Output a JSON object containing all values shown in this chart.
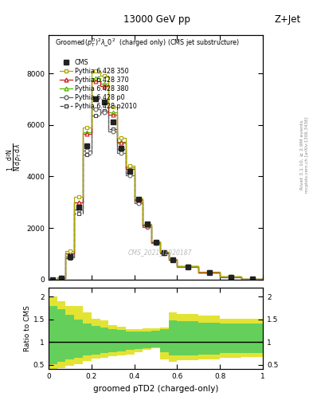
{
  "title_top": "13000 GeV pp",
  "title_right": "Z+Jet",
  "xlabel": "groomed pTD2 (charged-only)",
  "right_label1": "Rivet 3.1.10, ≥ 2.9M events",
  "right_label2": "mcplots.cern.ch [arXiv:1306.3436]",
  "watermark": "CMS_2021_I1920187",
  "bin_edges": [
    0.0,
    0.04,
    0.08,
    0.12,
    0.16,
    0.2,
    0.24,
    0.28,
    0.32,
    0.36,
    0.4,
    0.44,
    0.48,
    0.52,
    0.56,
    0.6,
    0.7,
    0.8,
    0.9,
    1.0
  ],
  "cms_values": [
    0.0,
    50,
    900,
    2800,
    5200,
    7000,
    6900,
    6100,
    5100,
    4200,
    3100,
    2150,
    1450,
    1050,
    760,
    480,
    260,
    90,
    25
  ],
  "py350_values": [
    0.0,
    80,
    1100,
    3200,
    5900,
    8100,
    7900,
    6700,
    5500,
    4400,
    3150,
    2150,
    1470,
    1070,
    780,
    530,
    290,
    105,
    32
  ],
  "py370_values": [
    0.0,
    70,
    1020,
    3000,
    5650,
    7700,
    7500,
    6400,
    5300,
    4300,
    3080,
    2100,
    1440,
    1040,
    760,
    510,
    280,
    100,
    30
  ],
  "py380_values": [
    0.0,
    70,
    1020,
    3000,
    5700,
    7800,
    7600,
    6500,
    5350,
    4350,
    3100,
    2120,
    1450,
    1050,
    770,
    515,
    282,
    101,
    30
  ],
  "pyp0_values": [
    0.0,
    55,
    880,
    2700,
    5000,
    6600,
    6500,
    5750,
    4900,
    4050,
    2950,
    2030,
    1400,
    1020,
    750,
    500,
    275,
    98,
    28
  ],
  "pyp2010_values": [
    0.0,
    50,
    820,
    2550,
    4850,
    6350,
    6550,
    5850,
    5050,
    4150,
    3000,
    2080,
    1430,
    1040,
    770,
    520,
    285,
    102,
    30
  ],
  "cms_color": "#222222",
  "py350_color": "#aaaa00",
  "py370_color": "#cc2222",
  "py380_color": "#55bb00",
  "pyp0_color": "#666666",
  "pyp2010_color": "#444444",
  "ratio_py350_hi": [
    2.0,
    1.9,
    1.8,
    1.8,
    1.65,
    1.52,
    1.48,
    1.38,
    1.33,
    1.28,
    1.28,
    1.3,
    1.3,
    1.32,
    1.65,
    1.62,
    1.58,
    1.52,
    1.52
  ],
  "ratio_py350_lo": [
    0.35,
    0.42,
    0.48,
    0.52,
    0.58,
    0.63,
    0.66,
    0.68,
    0.7,
    0.73,
    0.78,
    0.83,
    0.86,
    0.62,
    0.57,
    0.6,
    0.62,
    0.65,
    0.67
  ],
  "ratio_py380_hi": [
    1.8,
    1.72,
    1.6,
    1.5,
    1.4,
    1.35,
    1.32,
    1.28,
    1.26,
    1.24,
    1.23,
    1.24,
    1.25,
    1.28,
    1.48,
    1.46,
    1.42,
    1.4,
    1.4
  ],
  "ratio_py380_lo": [
    0.52,
    0.57,
    0.62,
    0.65,
    0.7,
    0.73,
    0.76,
    0.78,
    0.8,
    0.82,
    0.84,
    0.86,
    0.88,
    0.78,
    0.7,
    0.71,
    0.73,
    0.75,
    0.75
  ],
  "ylim_main": [
    0,
    9000
  ],
  "yticks_main": [
    0,
    2000,
    4000,
    6000,
    8000
  ],
  "ylim_ratio": [
    0.4,
    2.2
  ],
  "ratio_yticks": [
    0.5,
    1.0,
    1.5,
    2.0
  ]
}
